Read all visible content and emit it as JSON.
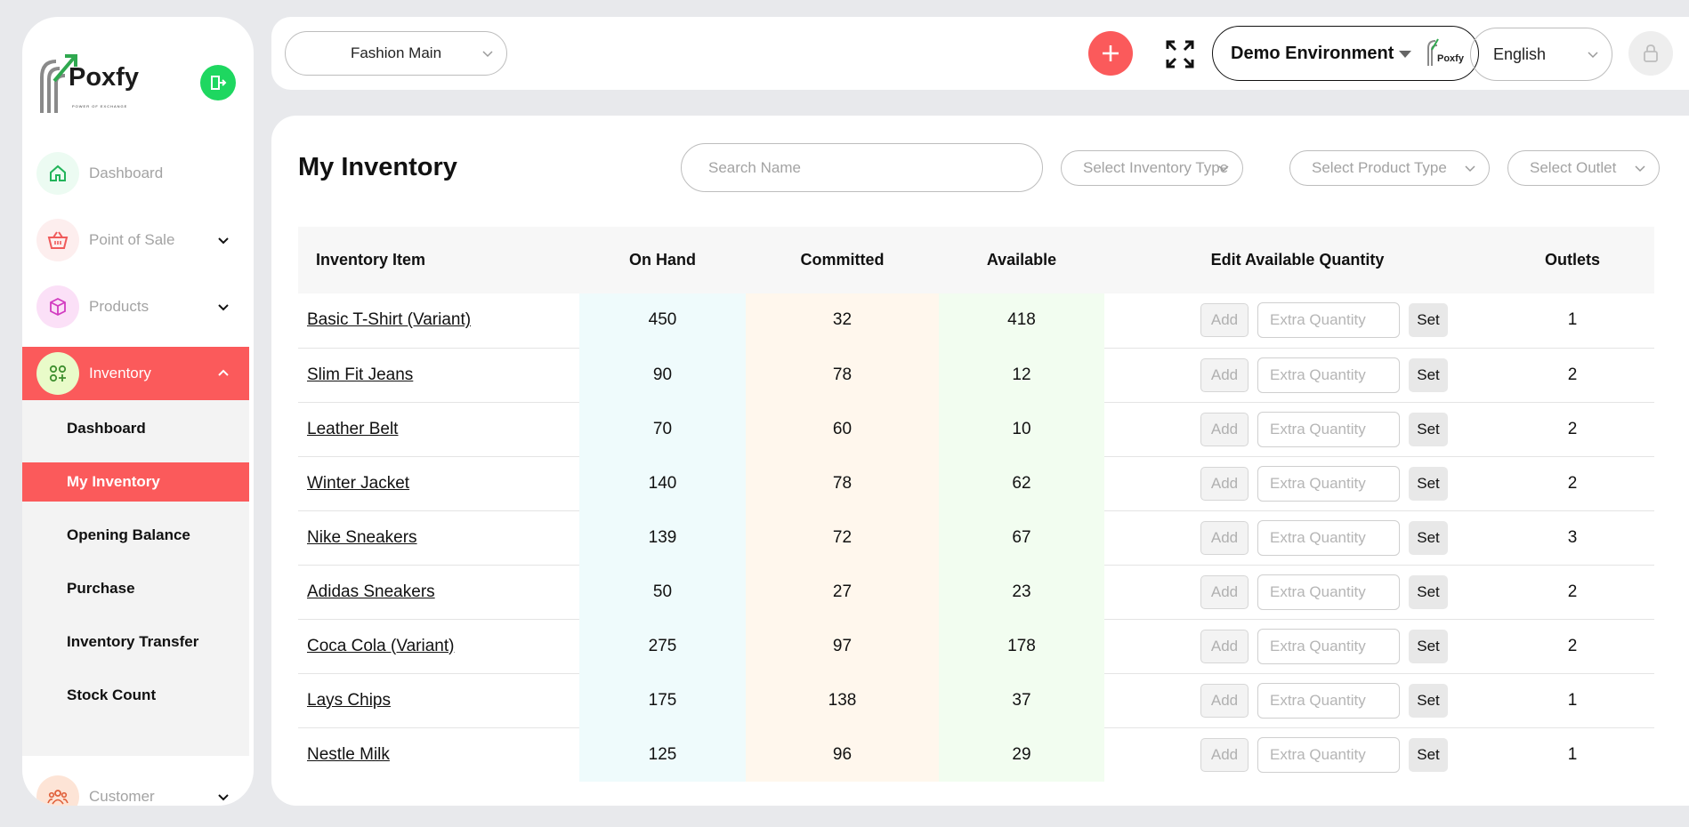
{
  "brand": {
    "name": "Poxfy",
    "tagline": "POWER OF EXCHANGE"
  },
  "sidebar": {
    "items": [
      {
        "label": "Dashboard",
        "icon": "home-icon"
      },
      {
        "label": "Point of Sale",
        "icon": "basket-icon"
      },
      {
        "label": "Products",
        "icon": "box-icon"
      },
      {
        "label": "Inventory",
        "icon": "apps-add-icon"
      },
      {
        "label": "Customer",
        "icon": "users-icon"
      }
    ],
    "submenu": [
      "Dashboard",
      "My Inventory",
      "Opening Balance",
      "Purchase",
      "Inventory Transfer",
      "Stock Count"
    ],
    "active_submenu": "My Inventory"
  },
  "topbar": {
    "outlet": "Fashion Main",
    "environment": "Demo Environment",
    "env_logo_text": "Poxfy",
    "language": "English"
  },
  "page": {
    "title": "My Inventory",
    "search_placeholder": "Search Name",
    "filters": [
      "Select Inventory Type",
      "Select Product Type",
      "Select Outlet"
    ]
  },
  "table": {
    "headers": [
      "Inventory Item",
      "On Hand",
      "Committed",
      "Available",
      "Edit Available Quantity",
      "Outlets"
    ],
    "add_label": "Add",
    "qty_placeholder": "Extra Quantity",
    "set_label": "Set",
    "rows": [
      {
        "item": "Basic T-Shirt (Variant)",
        "on_hand": "450",
        "committed": "32",
        "available": "418",
        "outlets": "1"
      },
      {
        "item": "Slim Fit Jeans",
        "on_hand": "90",
        "committed": "78",
        "available": "12",
        "outlets": "2"
      },
      {
        "item": "Leather Belt",
        "on_hand": "70",
        "committed": "60",
        "available": "10",
        "outlets": "2"
      },
      {
        "item": "Winter Jacket",
        "on_hand": "140",
        "committed": "78",
        "available": "62",
        "outlets": "2"
      },
      {
        "item": "Nike Sneakers",
        "on_hand": "139",
        "committed": "72",
        "available": "67",
        "outlets": "3"
      },
      {
        "item": "Adidas Sneakers",
        "on_hand": "50",
        "committed": "27",
        "available": "23",
        "outlets": "2"
      },
      {
        "item": "Coca Cola (Variant)",
        "on_hand": "275",
        "committed": "97",
        "available": "178",
        "outlets": "2"
      },
      {
        "item": "Lays Chips",
        "on_hand": "175",
        "committed": "138",
        "available": "37",
        "outlets": "1"
      },
      {
        "item": "Nestle Milk",
        "on_hand": "125",
        "committed": "96",
        "available": "29",
        "outlets": "1"
      }
    ]
  },
  "colors": {
    "accent": "#fb5a5b",
    "exit_green": "#1ed760",
    "on_hand_bg": "#effbfc",
    "committed_bg": "#fff7ed",
    "available_bg": "#f2fdf0"
  }
}
